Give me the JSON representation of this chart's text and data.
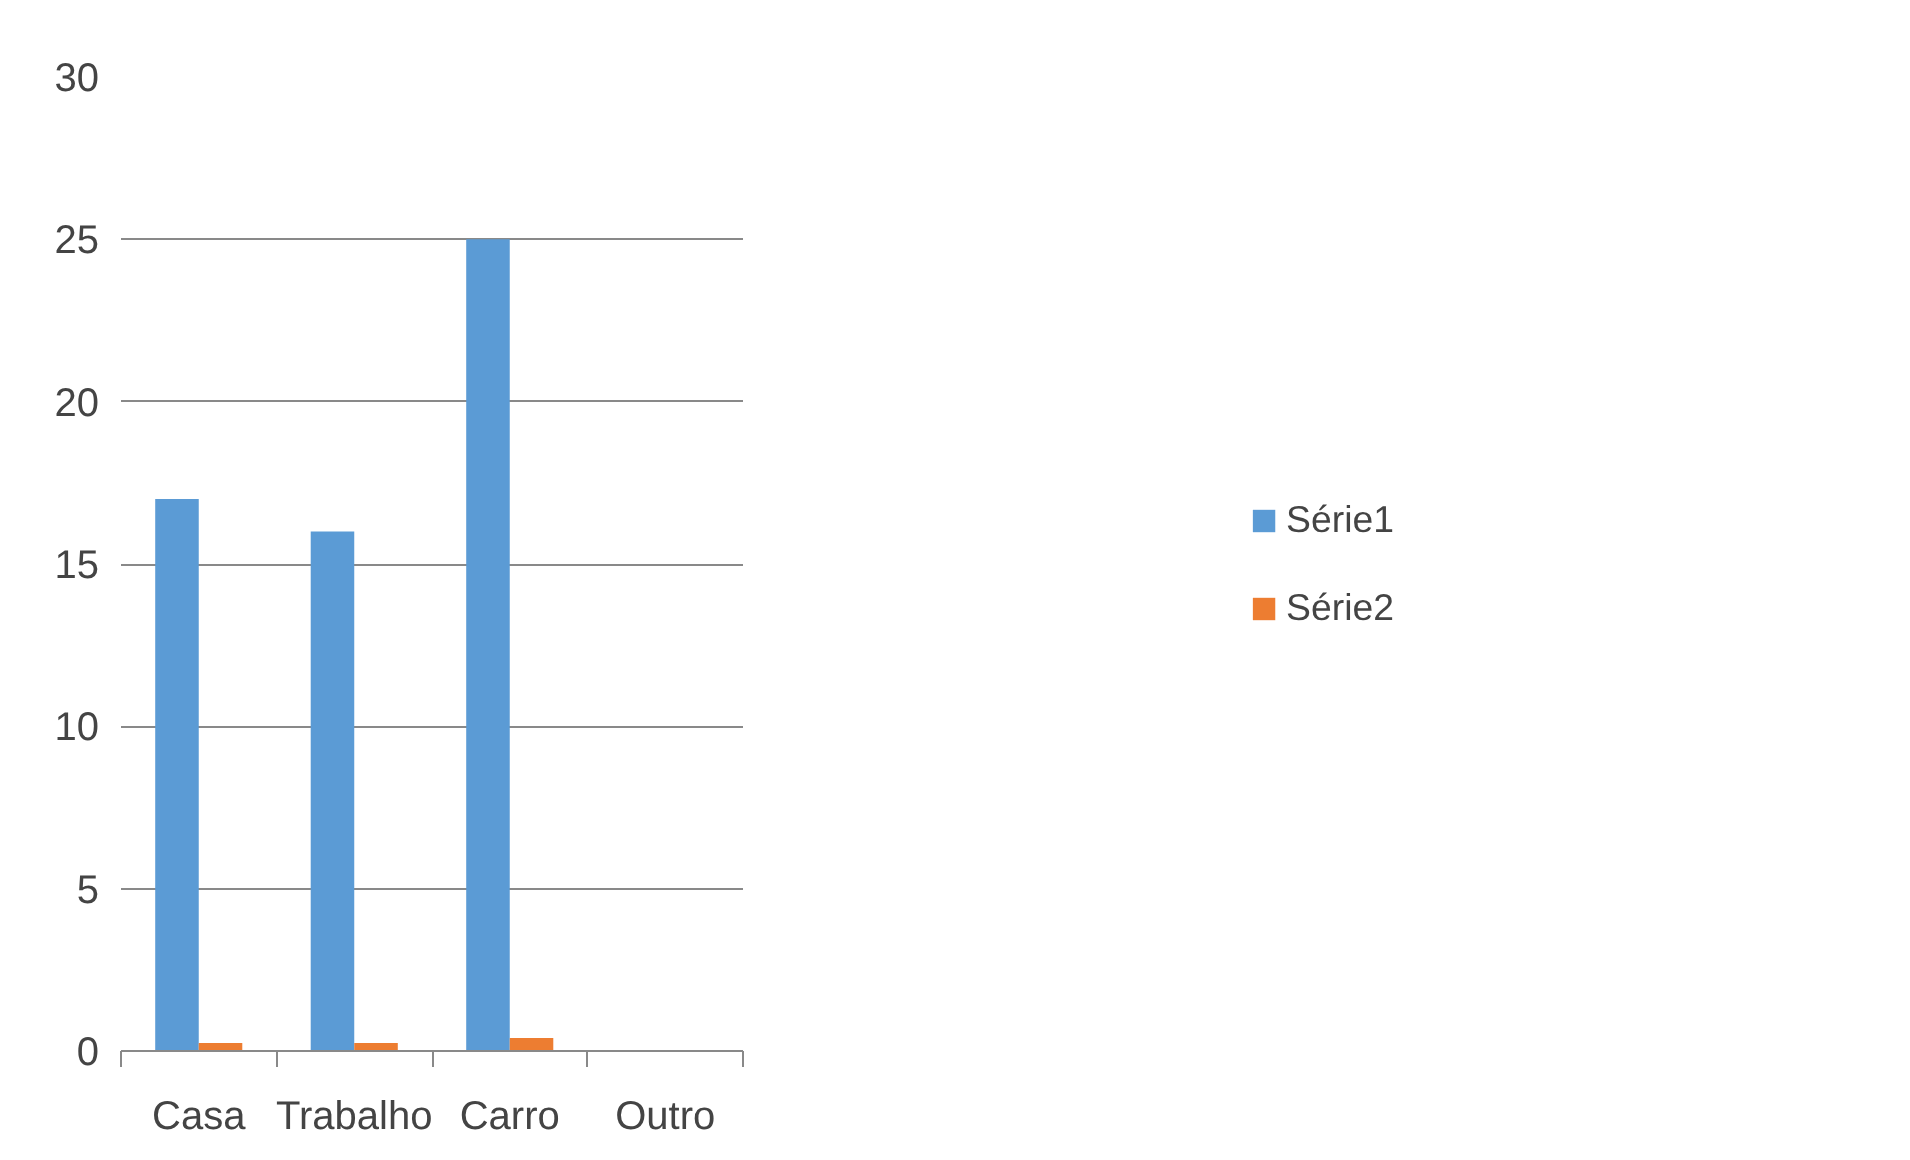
{
  "chart_data": {
    "type": "bar",
    "categories": [
      "Casa",
      "Trabalho",
      "Carro",
      "Outro"
    ],
    "series": [
      {
        "name": "Série1",
        "color": "#5b9bd5",
        "values": [
          17,
          16,
          25,
          0
        ]
      },
      {
        "name": "Série2",
        "color": "#ed7d31",
        "values": [
          0.25,
          0.25,
          0.4,
          0
        ]
      }
    ],
    "ylim": [
      0,
      30
    ],
    "yticks": [
      0,
      5,
      10,
      15,
      20,
      25,
      30
    ],
    "grid": "y",
    "legend": "right"
  }
}
